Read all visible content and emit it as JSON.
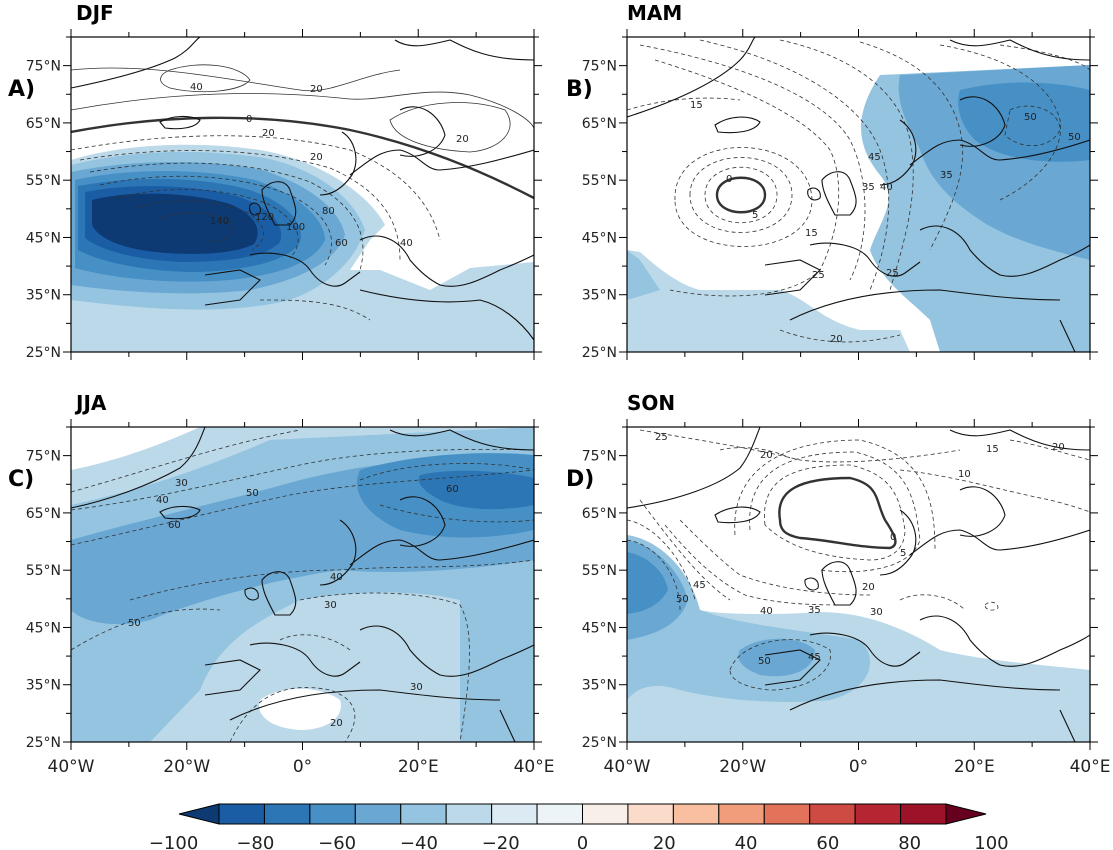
{
  "panels": [
    {
      "key": "djf",
      "title": "DJF",
      "label": "A)",
      "contour_labels": [
        "0",
        "20",
        "40",
        "20",
        "20",
        "20",
        "40",
        "60",
        "80",
        "100",
        "120",
        "140"
      ]
    },
    {
      "key": "mam",
      "title": "MAM",
      "label": "B)",
      "contour_labels": [
        "15",
        "0",
        "5",
        "15",
        "25",
        "25",
        "35",
        "45",
        "40",
        "50",
        "50",
        "35",
        "20"
      ]
    },
    {
      "key": "jja",
      "title": "JJA",
      "label": "C)",
      "contour_labels": [
        "30",
        "40",
        "50",
        "60",
        "60",
        "40",
        "30",
        "50",
        "30",
        "20"
      ]
    },
    {
      "key": "son",
      "title": "SON",
      "label": "D)",
      "contour_labels": [
        "25",
        "20",
        "15",
        "20",
        "10",
        "0",
        "5",
        "20",
        "30",
        "35",
        "40",
        "45",
        "50",
        "50",
        "45"
      ]
    }
  ],
  "axes": {
    "lat_ticks": [
      "75°N",
      "65°N",
      "55°N",
      "45°N",
      "35°N",
      "25°N"
    ],
    "lon_ticks": [
      "40°W",
      "20°W",
      "0°",
      "20°E",
      "40°E"
    ],
    "lat_range": [
      25,
      80
    ],
    "lon_range": [
      -40,
      40
    ]
  },
  "colorbar": {
    "ticks": [
      "−100",
      "−80",
      "−60",
      "−40",
      "−20",
      "0",
      "20",
      "40",
      "60",
      "80",
      "100"
    ],
    "range": [
      -100,
      100
    ],
    "step": 10,
    "colors": [
      "#0d3a73",
      "#1b5da5",
      "#2d76b6",
      "#4690c6",
      "#6aa8d3",
      "#94c4df",
      "#bcd9ea",
      "#dbeaf3",
      "#edf4f8",
      "#f8efe8",
      "#fbdccb",
      "#f8bfa1",
      "#f19c7b",
      "#e3725b",
      "#cd4b43",
      "#b52632",
      "#9c1228",
      "#67001f"
    ]
  }
}
